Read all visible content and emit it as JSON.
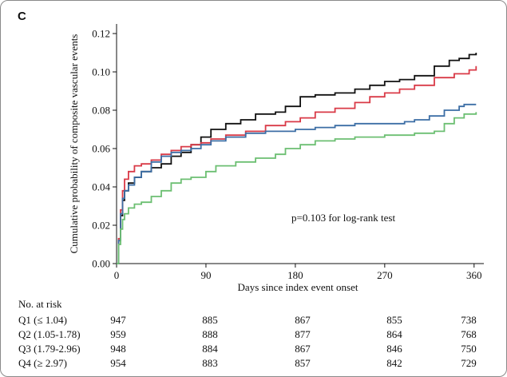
{
  "panel_label": "C",
  "chart_data": {
    "type": "line",
    "title": "",
    "xlabel": "Days since index event onset",
    "ylabel": "Cumulative probability of composite vascular events",
    "xlim": [
      0,
      365
    ],
    "ylim": [
      0,
      0.125
    ],
    "x_ticks": [
      "0",
      "90",
      "180",
      "270",
      "360"
    ],
    "y_ticks": [
      "0.00",
      "0.02",
      "0.04",
      "0.06",
      "0.08",
      "0.10",
      "0.12"
    ],
    "grid": false,
    "annotation": "p=0.103 for log-rank test",
    "series": [
      {
        "color": "#111111",
        "points": [
          [
            0,
            0
          ],
          [
            2,
            0.012
          ],
          [
            4,
            0.025
          ],
          [
            6,
            0.033
          ],
          [
            8,
            0.038
          ],
          [
            12,
            0.042
          ],
          [
            18,
            0.045
          ],
          [
            25,
            0.048
          ],
          [
            35,
            0.05
          ],
          [
            45,
            0.052
          ],
          [
            55,
            0.056
          ],
          [
            65,
            0.058
          ],
          [
            75,
            0.062
          ],
          [
            85,
            0.066
          ],
          [
            95,
            0.07
          ],
          [
            110,
            0.073
          ],
          [
            125,
            0.075
          ],
          [
            140,
            0.078
          ],
          [
            160,
            0.079
          ],
          [
            170,
            0.082
          ],
          [
            185,
            0.087
          ],
          [
            200,
            0.088
          ],
          [
            220,
            0.089
          ],
          [
            240,
            0.091
          ],
          [
            255,
            0.093
          ],
          [
            270,
            0.095
          ],
          [
            285,
            0.096
          ],
          [
            300,
            0.098
          ],
          [
            320,
            0.103
          ],
          [
            335,
            0.106
          ],
          [
            345,
            0.107
          ],
          [
            355,
            0.109
          ],
          [
            362,
            0.11
          ]
        ]
      },
      {
        "color": "#d93a47",
        "points": [
          [
            0,
            0
          ],
          [
            2,
            0.013
          ],
          [
            4,
            0.028
          ],
          [
            6,
            0.038
          ],
          [
            8,
            0.044
          ],
          [
            12,
            0.048
          ],
          [
            18,
            0.051
          ],
          [
            25,
            0.052
          ],
          [
            35,
            0.054
          ],
          [
            45,
            0.057
          ],
          [
            55,
            0.059
          ],
          [
            65,
            0.061
          ],
          [
            75,
            0.062
          ],
          [
            85,
            0.063
          ],
          [
            95,
            0.065
          ],
          [
            110,
            0.067
          ],
          [
            130,
            0.069
          ],
          [
            150,
            0.072
          ],
          [
            170,
            0.074
          ],
          [
            185,
            0.076
          ],
          [
            200,
            0.079
          ],
          [
            220,
            0.081
          ],
          [
            240,
            0.084
          ],
          [
            255,
            0.087
          ],
          [
            270,
            0.089
          ],
          [
            285,
            0.091
          ],
          [
            300,
            0.093
          ],
          [
            320,
            0.097
          ],
          [
            340,
            0.099
          ],
          [
            355,
            0.101
          ],
          [
            362,
            0.103
          ]
        ]
      },
      {
        "color": "#3c6ea5",
        "points": [
          [
            0,
            0
          ],
          [
            2,
            0.012
          ],
          [
            4,
            0.026
          ],
          [
            6,
            0.034
          ],
          [
            8,
            0.038
          ],
          [
            12,
            0.041
          ],
          [
            18,
            0.045
          ],
          [
            25,
            0.048
          ],
          [
            35,
            0.053
          ],
          [
            45,
            0.056
          ],
          [
            55,
            0.058
          ],
          [
            65,
            0.059
          ],
          [
            75,
            0.06
          ],
          [
            85,
            0.062
          ],
          [
            95,
            0.064
          ],
          [
            110,
            0.066
          ],
          [
            130,
            0.068
          ],
          [
            150,
            0.069
          ],
          [
            180,
            0.07
          ],
          [
            200,
            0.071
          ],
          [
            220,
            0.072
          ],
          [
            240,
            0.073
          ],
          [
            270,
            0.073
          ],
          [
            290,
            0.074
          ],
          [
            300,
            0.075
          ],
          [
            315,
            0.077
          ],
          [
            330,
            0.08
          ],
          [
            345,
            0.082
          ],
          [
            350,
            0.083
          ],
          [
            362,
            0.083
          ]
        ]
      },
      {
        "color": "#6cbf72",
        "points": [
          [
            0,
            0
          ],
          [
            2,
            0.01
          ],
          [
            4,
            0.018
          ],
          [
            6,
            0.023
          ],
          [
            8,
            0.026
          ],
          [
            12,
            0.029
          ],
          [
            18,
            0.031
          ],
          [
            25,
            0.032
          ],
          [
            35,
            0.035
          ],
          [
            45,
            0.038
          ],
          [
            55,
            0.042
          ],
          [
            65,
            0.044
          ],
          [
            75,
            0.045
          ],
          [
            90,
            0.048
          ],
          [
            100,
            0.051
          ],
          [
            120,
            0.053
          ],
          [
            140,
            0.055
          ],
          [
            160,
            0.057
          ],
          [
            170,
            0.06
          ],
          [
            185,
            0.062
          ],
          [
            200,
            0.064
          ],
          [
            220,
            0.065
          ],
          [
            240,
            0.066
          ],
          [
            270,
            0.067
          ],
          [
            290,
            0.067
          ],
          [
            300,
            0.068
          ],
          [
            310,
            0.068
          ],
          [
            320,
            0.069
          ],
          [
            330,
            0.073
          ],
          [
            340,
            0.076
          ],
          [
            350,
            0.078
          ],
          [
            362,
            0.079
          ]
        ]
      }
    ]
  },
  "risk_table": {
    "title": "No. at risk",
    "rows": [
      {
        "label": "Q1 (≤ 1.04)",
        "values": [
          "947",
          "885",
          "867",
          "855",
          "738"
        ]
      },
      {
        "label": "Q2 (1.05-1.78)",
        "values": [
          "959",
          "888",
          "877",
          "864",
          "768"
        ]
      },
      {
        "label": "Q3 (1.79-2.96)",
        "values": [
          "948",
          "884",
          "867",
          "846",
          "750"
        ]
      },
      {
        "label": "Q4 (≥ 2.97)",
        "values": [
          "954",
          "883",
          "857",
          "842",
          "729"
        ]
      }
    ]
  }
}
